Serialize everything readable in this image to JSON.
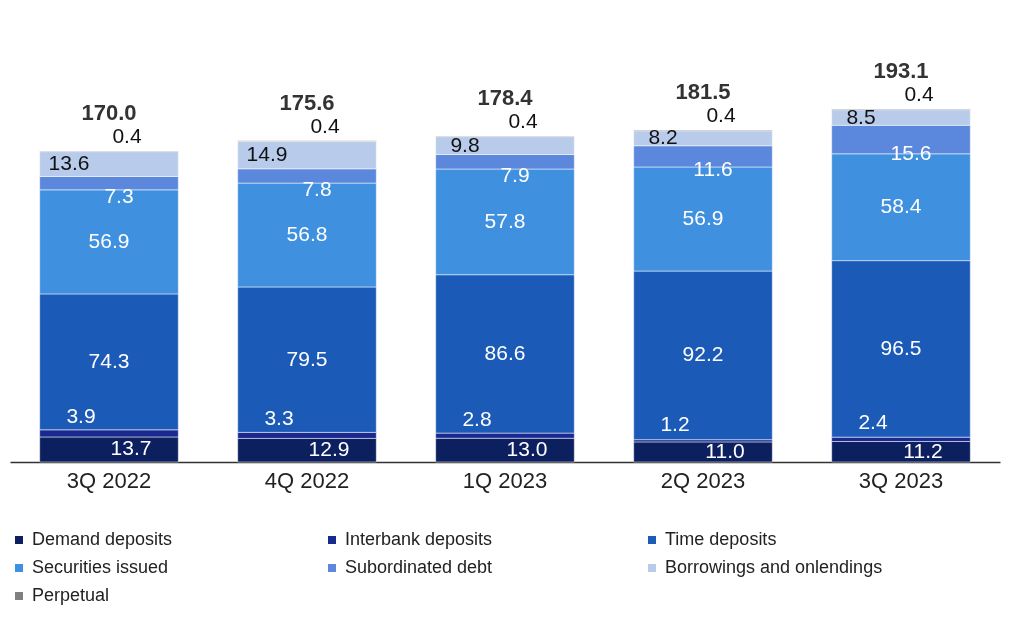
{
  "chart_data": {
    "type": "bar",
    "stacked": true,
    "categories": [
      "3Q 2022",
      "4Q 2022",
      "1Q 2023",
      "2Q 2023",
      "3Q 2023"
    ],
    "series": [
      {
        "name": "Demand deposits",
        "color": "#0c1f5e",
        "values": [
          13.7,
          12.9,
          13.0,
          11.0,
          11.2
        ],
        "value_labels": [
          "13.7",
          "12.9",
          "13.0",
          "11.0",
          "11.2"
        ]
      },
      {
        "name": "Interbank deposits",
        "color": "#1a2990",
        "values": [
          3.9,
          3.3,
          2.8,
          1.2,
          2.4
        ],
        "value_labels": [
          "3.9",
          "3.3",
          "2.8",
          "1.2",
          "2.4"
        ]
      },
      {
        "name": "Time deposits",
        "color": "#1c5ab8",
        "values": [
          74.3,
          79.5,
          86.6,
          92.2,
          96.5
        ],
        "value_labels": [
          "74.3",
          "79.5",
          "86.6",
          "92.2",
          "96.5"
        ]
      },
      {
        "name": "Securities issued",
        "color": "#3f90de",
        "values": [
          56.9,
          56.8,
          57.8,
          56.9,
          58.4
        ],
        "value_labels": [
          "56.9",
          "56.8",
          "57.8",
          "56.9",
          "58.4"
        ]
      },
      {
        "name": "Subordinated debt",
        "color": "#5b87dc",
        "values": [
          7.3,
          7.8,
          7.9,
          11.6,
          15.6
        ],
        "value_labels": [
          "7.3",
          "7.8",
          "7.9",
          "11.6",
          "15.6"
        ]
      },
      {
        "name": "Borrowings and onlendings",
        "color": "#b8cbeb",
        "values": [
          13.6,
          14.9,
          9.8,
          8.2,
          8.5
        ],
        "value_labels": [
          "13.6",
          "14.9",
          "9.8",
          "8.2",
          "8.5"
        ]
      },
      {
        "name": "Perpetual",
        "color": "#808080",
        "values": [
          0.4,
          0.4,
          0.4,
          0.4,
          0.4
        ],
        "value_labels": [
          "0.4",
          "0.4",
          "0.4",
          "0.4",
          "0.4"
        ]
      }
    ],
    "totals": [
      "170.0",
      "175.6",
      "178.4",
      "181.5",
      "193.1"
    ],
    "tick_labels": "x",
    "grid": false,
    "legend": "bottom"
  }
}
